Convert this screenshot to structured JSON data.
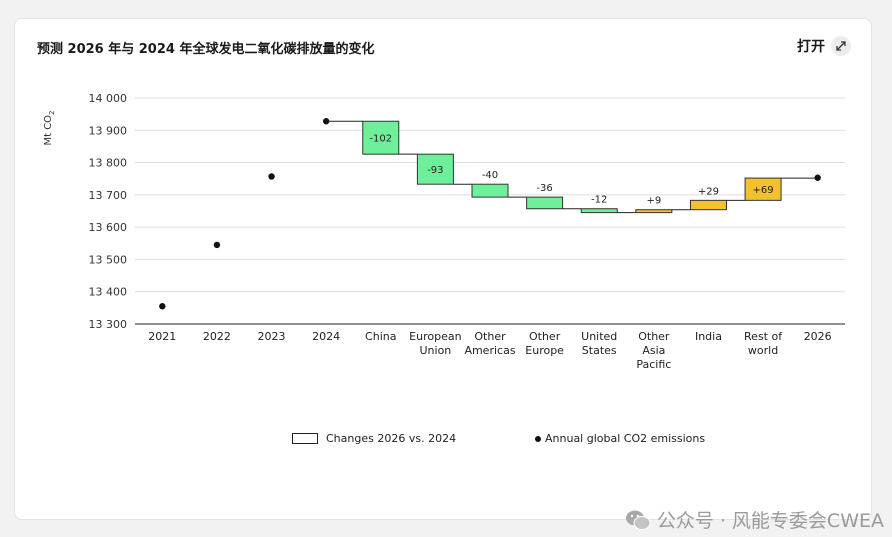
{
  "header": {
    "title": "预测 2026 年与 2024 年全球发电二氧化碳排放量的变化",
    "open_label": "打开"
  },
  "legend": {
    "changes_label": "Changes 2026 vs. 2024",
    "emissions_label": "Annual global CO2 emissions"
  },
  "watermark": {
    "text": "公众号 · 风能专委会CWEA"
  },
  "colors": {
    "decrease": "#6ef09a",
    "increase": "#f2c22e",
    "dot": "#111111",
    "grid": "#dddddd"
  },
  "chart_data": {
    "type": "waterfall",
    "ylabel": "Mt CO",
    "ylabel_subscript": "2",
    "ylim": [
      13300,
      14000
    ],
    "yticks": [
      "13 300",
      "13 400",
      "13 500",
      "13 600",
      "13 700",
      "13 800",
      "13 900",
      "14 000"
    ],
    "ytick_values": [
      13300,
      13400,
      13500,
      13600,
      13700,
      13800,
      13900,
      14000
    ],
    "categories": [
      [
        "2021"
      ],
      [
        "2022"
      ],
      [
        "2023"
      ],
      [
        "2024"
      ],
      [
        "China"
      ],
      [
        "European",
        "Union"
      ],
      [
        "Other",
        "Americas"
      ],
      [
        "Other",
        "Europe"
      ],
      [
        "United",
        "States"
      ],
      [
        "Other",
        "Asia",
        "Pacific"
      ],
      [
        "India"
      ],
      [
        "Rest of",
        "world"
      ],
      [
        "2026"
      ]
    ],
    "points": [
      {
        "index": 0,
        "value": 13355
      },
      {
        "index": 1,
        "value": 13545
      },
      {
        "index": 2,
        "value": 13757
      },
      {
        "index": 3,
        "value": 13928
      },
      {
        "index": 12,
        "value": 13753
      }
    ],
    "changes": [
      {
        "index": 4,
        "value": -102,
        "label": "-102"
      },
      {
        "index": 5,
        "value": -93,
        "label": "-93"
      },
      {
        "index": 6,
        "value": -40,
        "label": "-40"
      },
      {
        "index": 7,
        "value": -36,
        "label": "-36"
      },
      {
        "index": 8,
        "value": -12,
        "label": "-12"
      },
      {
        "index": 9,
        "value": 9,
        "label": "+9"
      },
      {
        "index": 10,
        "value": 29,
        "label": "+29"
      },
      {
        "index": 11,
        "value": 69,
        "label": "+69"
      }
    ],
    "base_start": 13928
  }
}
